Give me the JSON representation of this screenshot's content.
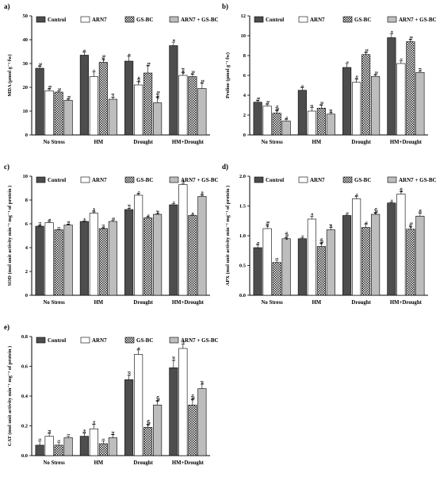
{
  "chart_data": [
    {
      "type": "bar",
      "panel": "a)",
      "ylabel": "MDA (µmol g⁻¹ fw)",
      "ylim": [
        0,
        50
      ],
      "yticks": [
        0,
        10,
        20,
        30,
        40,
        50
      ],
      "categories": [
        "No Stress",
        "HM",
        "Drought",
        "HM+Drought"
      ],
      "series": [
        {
          "name": "Control",
          "values": [
            28,
            33.5,
            31,
            37.5
          ],
          "errors": [
            0.8,
            1.2,
            2.0,
            1.5
          ],
          "labels": [
            "fg",
            "b",
            "b",
            "a"
          ]
        },
        {
          "name": "ARN7",
          "values": [
            18.5,
            24.5,
            21,
            25
          ],
          "errors": [
            0.8,
            2.0,
            1.5,
            1.2
          ],
          "labels": [
            "fg",
            "c",
            "cde",
            "def"
          ]
        },
        {
          "name": "GS-BC",
          "values": [
            18,
            30.5,
            26,
            24.5
          ],
          "errors": [
            0.5,
            1.2,
            3.0,
            1.0
          ],
          "labels": [
            "g",
            "efg",
            "fg",
            "fg"
          ]
        },
        {
          "name": "ARN7 + GS-BC",
          "values": [
            14.5,
            15,
            13.5,
            19.5
          ],
          "errors": [
            0.5,
            0.8,
            2.5,
            2.2
          ],
          "labels": [
            "fg",
            "cd",
            "defg",
            "fg"
          ]
        }
      ]
    },
    {
      "type": "bar",
      "panel": "b)",
      "ylabel": "Proline (µmol g⁻¹ fw)",
      "ylim": [
        0,
        12
      ],
      "yticks": [
        0,
        2,
        4,
        6,
        8,
        10,
        12
      ],
      "categories": [
        "No Stress",
        "HM",
        "Drought",
        "HM+Drought"
      ],
      "series": [
        {
          "name": "Control",
          "values": [
            3.3,
            4.5,
            6.8,
            9.8
          ],
          "errors": [
            0.15,
            0.25,
            0.4,
            0.4
          ],
          "labels": [
            "fg",
            "b",
            "c",
            "a"
          ]
        },
        {
          "name": "ARN7",
          "values": [
            2.9,
            2.4,
            5.3,
            7.2
          ],
          "errors": [
            0.2,
            0.35,
            0.3,
            0.3
          ],
          "labels": [
            "fg",
            "d",
            "de",
            "c"
          ]
        },
        {
          "name": "GS-BC",
          "values": [
            2.2,
            2.7,
            8.1,
            9.4
          ],
          "errors": [
            0.3,
            0.3,
            0.2,
            0.2
          ],
          "labels": [
            "fgh",
            "fg",
            "fg",
            "fg"
          ]
        },
        {
          "name": "ARN7 + GS-BC",
          "values": [
            1.4,
            2.1,
            5.9,
            6.3
          ],
          "errors": [
            0.15,
            0.15,
            0.15,
            0.15
          ],
          "labels": [
            "h",
            "ef",
            "fg",
            "d"
          ]
        }
      ]
    },
    {
      "type": "bar",
      "panel": "c)",
      "ylabel": "SOD (mol unit activity min⁻¹ mg⁻¹ of protein )",
      "ylim": [
        0,
        10
      ],
      "yticks": [
        0,
        2,
        4,
        6,
        8,
        10
      ],
      "categories": [
        "No Stress",
        "HM",
        "Drought",
        "HM+Drought"
      ],
      "series": [
        {
          "name": "Control",
          "values": [
            5.8,
            6.2,
            7.2,
            7.6
          ],
          "errors": [
            0.05,
            0.05,
            0.1,
            0.1
          ],
          "labels": [
            "hi",
            "e",
            "cd",
            "c"
          ]
        },
        {
          "name": "ARN7",
          "values": [
            6.1,
            6.9,
            8.4,
            9.3
          ],
          "errors": [
            0.1,
            0.1,
            0.1,
            0.1
          ],
          "labels": [
            "h",
            "de",
            "b",
            "a"
          ]
        },
        {
          "name": "GS-BC",
          "values": [
            5.5,
            5.6,
            6.5,
            6.7
          ],
          "errors": [
            0.05,
            0.05,
            0.05,
            0.05
          ],
          "labels": [
            "i",
            "hi",
            "h",
            "e"
          ]
        },
        {
          "name": "ARN7 + GS-BC",
          "values": [
            5.9,
            6.2,
            6.8,
            8.3
          ],
          "errors": [
            0.05,
            0.1,
            0.05,
            0.1
          ],
          "labels": [
            "hi",
            "g",
            "ef",
            "de"
          ]
        }
      ]
    },
    {
      "type": "bar",
      "panel": "d)",
      "ylabel": "APX (mol unit activity min⁻¹ mg⁻¹ of protein )",
      "ylim": [
        0,
        2.0
      ],
      "yticks": [
        0.0,
        0.5,
        1.0,
        1.5,
        2.0
      ],
      "categories": [
        "No Stress",
        "HM",
        "Drought",
        "HM+Drought"
      ],
      "series": [
        {
          "name": "Control",
          "values": [
            0.8,
            0.95,
            1.34,
            1.55
          ],
          "errors": [
            0.05,
            0.02,
            0.02,
            0.02
          ],
          "labels": [
            "h",
            "c",
            "c",
            "c"
          ]
        },
        {
          "name": "ARN7",
          "values": [
            1.12,
            1.28,
            1.62,
            1.7
          ],
          "errors": [
            0.05,
            0.05,
            0.04,
            0.04
          ],
          "labels": [
            "efg",
            "a",
            "b",
            "ab"
          ]
        },
        {
          "name": "GS-BC",
          "values": [
            0.55,
            0.82,
            1.14,
            1.11
          ],
          "errors": [
            0.04,
            0.06,
            0.05,
            0.04
          ],
          "labels": [
            "i",
            "fgh",
            "h",
            "efg"
          ]
        },
        {
          "name": "ARN7 + GS-BC",
          "values": [
            0.95,
            1.1,
            1.36,
            1.33
          ],
          "errors": [
            0.02,
            0.04,
            0.03,
            0.05
          ],
          "labels": [
            "efgh",
            "ef",
            "fgh",
            "de"
          ]
        }
      ]
    },
    {
      "type": "bar",
      "panel": "e)",
      "ylabel": "CAT (mol unit activity min⁻¹ mg⁻¹ of protein )",
      "ylim": [
        0,
        0.8
      ],
      "yticks": [
        0.0,
        0.2,
        0.4,
        0.6,
        0.8
      ],
      "categories": [
        "No Stress",
        "HM",
        "Drought",
        "HM+Drought"
      ],
      "series": [
        {
          "name": "Control",
          "values": [
            0.07,
            0.13,
            0.51,
            0.59
          ],
          "errors": [
            0.03,
            0.02,
            0.03,
            0.05
          ],
          "labels": [
            "i",
            "de",
            "cd",
            "cd"
          ]
        },
        {
          "name": "ARN7",
          "values": [
            0.13,
            0.18,
            0.68,
            0.72
          ],
          "errors": [
            0.02,
            0.03,
            0.03,
            0.03
          ],
          "labels": [
            "hi",
            "bc",
            "b",
            "a"
          ]
        },
        {
          "name": "GS-BC",
          "values": [
            0.07,
            0.08,
            0.19,
            0.34
          ],
          "errors": [
            0.02,
            0.02,
            0.02,
            0.04
          ],
          "labels": [
            "i",
            "i",
            "fgh",
            "fgh"
          ]
        },
        {
          "name": "ARN7 + GS-BC",
          "values": [
            0.12,
            0.12,
            0.34,
            0.45
          ],
          "errors": [
            0.01,
            0.02,
            0.03,
            0.03
          ],
          "labels": [
            "i",
            "hi",
            "fgh",
            "ef"
          ]
        }
      ]
    }
  ],
  "colors": {
    "control": "#4d4d4d",
    "arn7": "#ffffff",
    "gsbc_pattern": "checkered",
    "combo": "#bdbdbd"
  }
}
